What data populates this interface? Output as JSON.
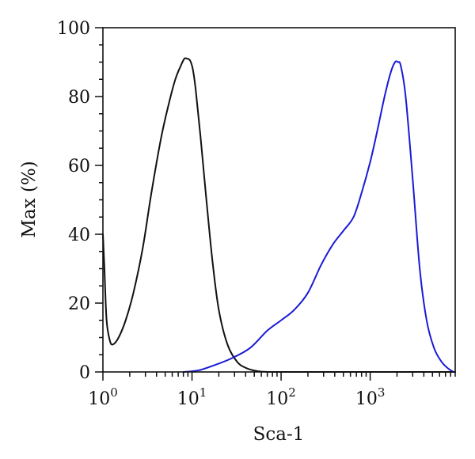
{
  "chart_data": {
    "type": "line",
    "title": "",
    "xlabel": "Sca-1",
    "ylabel": "Max (%)",
    "x_scale": "log",
    "xlim": [
      1,
      9000
    ],
    "ylim": [
      0,
      100
    ],
    "x_ticks": [
      {
        "value": 1,
        "base": "10",
        "exp": "0"
      },
      {
        "value": 10,
        "base": "10",
        "exp": "1"
      },
      {
        "value": 100,
        "base": "10",
        "exp": "2"
      },
      {
        "value": 1000,
        "base": "10",
        "exp": "3"
      }
    ],
    "y_ticks": [
      0,
      20,
      40,
      60,
      80,
      100
    ],
    "grid": false,
    "legend": "none",
    "series": [
      {
        "color": "#111111",
        "x": [
          1.0,
          1.04,
          1.1,
          1.2,
          1.3,
          1.5,
          1.8,
          2.2,
          2.8,
          3.5,
          4.5,
          5.5,
          6.5,
          7.5,
          8.2,
          8.8,
          9.5,
          10.2,
          11.0,
          12.5,
          14.5,
          17.0,
          20.0,
          25.0,
          32.0,
          40.0,
          50.0,
          60.0,
          80.0,
          120.0,
          9000.0
        ],
        "y": [
          40,
          30,
          15,
          9,
          8,
          10,
          15,
          23,
          36,
          52,
          68,
          78,
          85,
          89,
          91,
          91,
          90.5,
          88,
          82,
          68,
          50,
          32,
          18,
          8,
          3,
          1.2,
          0.4,
          0.1,
          0,
          0,
          0
        ]
      },
      {
        "color": "#1a1ad6",
        "x": [
          8.0,
          12.0,
          18.0,
          28.0,
          45.0,
          70.0,
          100.0,
          140.0,
          200.0,
          280.0,
          380.0,
          500.0,
          650.0,
          800.0,
          1000.0,
          1200.0,
          1450.0,
          1700.0,
          1900.0,
          2050.0,
          2200.0,
          2500.0,
          3000.0,
          3600.0,
          4300.0,
          5200.0,
          6300.0,
          7500.0,
          8600.0
        ],
        "y": [
          0,
          0.5,
          2,
          4,
          7,
          12,
          15,
          18,
          23,
          31,
          37,
          41,
          45,
          52,
          61,
          70,
          80,
          87,
          90,
          90,
          89,
          80,
          56,
          30,
          15,
          7,
          3,
          1,
          0
        ]
      }
    ]
  }
}
